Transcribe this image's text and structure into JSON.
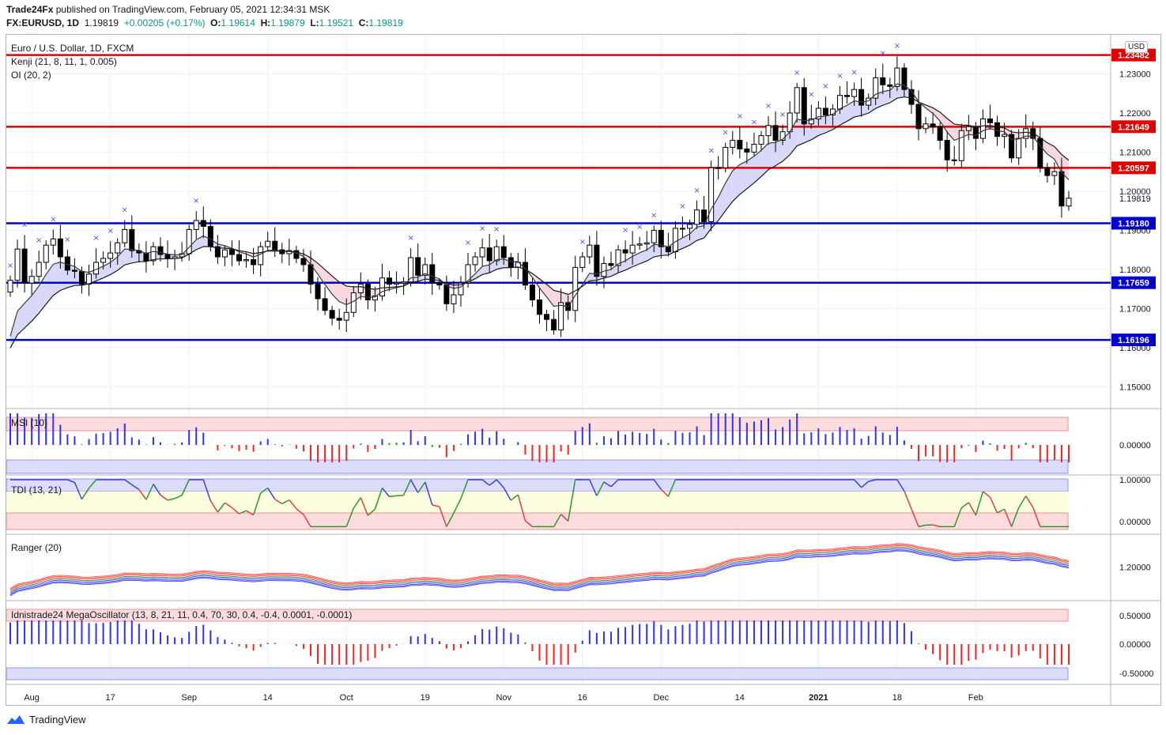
{
  "header": {
    "publisher": "Trade24Fx",
    "published_text": "published on TradingView.com, February 05, 2021 12:34:31 MSK",
    "symbol": "FX:EURUSD, 1D",
    "last": "1.19819",
    "change": "+0.00205 (+0.17%)",
    "o_label": "O:",
    "o": "1.19614",
    "h_label": "H:",
    "h": "1.19879",
    "l_label": "L:",
    "l": "1.19521",
    "c_label": "C:",
    "c": "1.19819"
  },
  "legend": {
    "title": "Euro / U.S. Dollar, 1D, FXCM",
    "ind1": "Kenji (21, 8, 11, 1, 0.005)",
    "ind2": "OI (20, 2)",
    "msi": "MSI (10)",
    "tdi": "TDI (13, 21)",
    "ranger": "Ranger (20)",
    "mega": "Idnistrade24 MegaOscillator (13, 8, 21, 11, 0.4, 70, 30, 0.4, -0.4, 0.0001, -0.0001)"
  },
  "currency_badge": "USD",
  "colors": {
    "up": "#ffffff",
    "down": "#000000",
    "red_level": "#e00000",
    "blue_level": "#0000d0",
    "histo_blue": "#3030ff",
    "histo_red": "#ff2020",
    "histo_green": "#1a9a1a"
  },
  "chart_data": {
    "type": "candlestick",
    "title": "Euro / U.S. Dollar, 1D, FXCM",
    "y_axis": {
      "min": 1.145,
      "max": 1.24,
      "currency": "USD"
    },
    "y_ticks": [
      "1.23000",
      "1.22000",
      "1.21000",
      "1.20000",
      "1.19000",
      "1.18000",
      "1.17000",
      "1.16000",
      "1.15000"
    ],
    "levels": [
      {
        "value": 1.23482,
        "label": "1.23482",
        "color": "#e00000"
      },
      {
        "value": 1.21649,
        "label": "1.21649",
        "color": "#e00000"
      },
      {
        "value": 1.20597,
        "label": "1.20597",
        "color": "#e00000"
      },
      {
        "value": 1.1918,
        "label": "1.19180",
        "color": "#0000d0"
      },
      {
        "value": 1.17659,
        "label": "1.17659",
        "color": "#0000d0"
      },
      {
        "value": 1.16196,
        "label": "1.16196",
        "color": "#0000d0"
      }
    ],
    "last_price": {
      "value": 1.19819,
      "label": "1.19819"
    },
    "x_labels": [
      "Aug",
      "17",
      "Sep",
      "14",
      "Oct",
      "19",
      "Nov",
      "16",
      "Dec",
      "14",
      "2021",
      "18",
      "Feb"
    ],
    "closes": [
      1.1772,
      1.1852,
      1.1765,
      1.1782,
      1.1818,
      1.1862,
      1.1878,
      1.1832,
      1.1798,
      1.1795,
      1.1762,
      1.1788,
      1.1818,
      1.1828,
      1.1842,
      1.1868,
      1.1902,
      1.1848,
      1.1842,
      1.1822,
      1.1858,
      1.1838,
      1.1828,
      1.1832,
      1.184,
      1.1902,
      1.1925,
      1.191,
      1.1858,
      1.1832,
      1.185,
      1.1838,
      1.1822,
      1.1825,
      1.1812,
      1.1858,
      1.1872,
      1.185,
      1.184,
      1.1848,
      1.1828,
      1.1812,
      1.1762,
      1.1725,
      1.1695,
      1.1675,
      1.167,
      1.169,
      1.174,
      1.1762,
      1.1722,
      1.1732,
      1.1778,
      1.1762,
      1.1765,
      1.1768,
      1.183,
      1.1785,
      1.1812,
      1.1765,
      1.176,
      1.1712,
      1.1735,
      1.1765,
      1.1812,
      1.1832,
      1.1855,
      1.1822,
      1.1858,
      1.183,
      1.1805,
      1.1818,
      1.176,
      1.1722,
      1.1685,
      1.1672,
      1.1645,
      1.1715,
      1.1695,
      1.1805,
      1.1832,
      1.1862,
      1.1782,
      1.1815,
      1.181,
      1.185,
      1.1842,
      1.1862,
      1.1865,
      1.1868,
      1.19,
      1.1858,
      1.1845,
      1.1905,
      1.1905,
      1.1915,
      1.1952,
      1.1922,
      1.206,
      1.206,
      1.2112,
      1.213,
      1.2108,
      1.21,
      1.212,
      1.2142,
      1.2168,
      1.213,
      1.2152,
      1.22,
      1.2265,
      1.2172,
      1.2185,
      1.2212,
      1.2195,
      1.221,
      1.2245,
      1.2242,
      1.226,
      1.222,
      1.2238,
      1.229,
      1.2272,
      1.2268,
      1.2315,
      1.226,
      1.2222,
      1.216,
      1.2172,
      1.2165,
      1.213,
      1.208,
      1.2078,
      1.2155,
      1.2165,
      1.2135,
      1.2185,
      1.2175,
      1.214,
      1.2145,
      1.2085,
      1.2135,
      1.216,
      1.2135,
      1.206,
      1.204,
      1.205,
      1.1962,
      1.1982
    ]
  },
  "footer": {
    "brand": "TradingView"
  }
}
